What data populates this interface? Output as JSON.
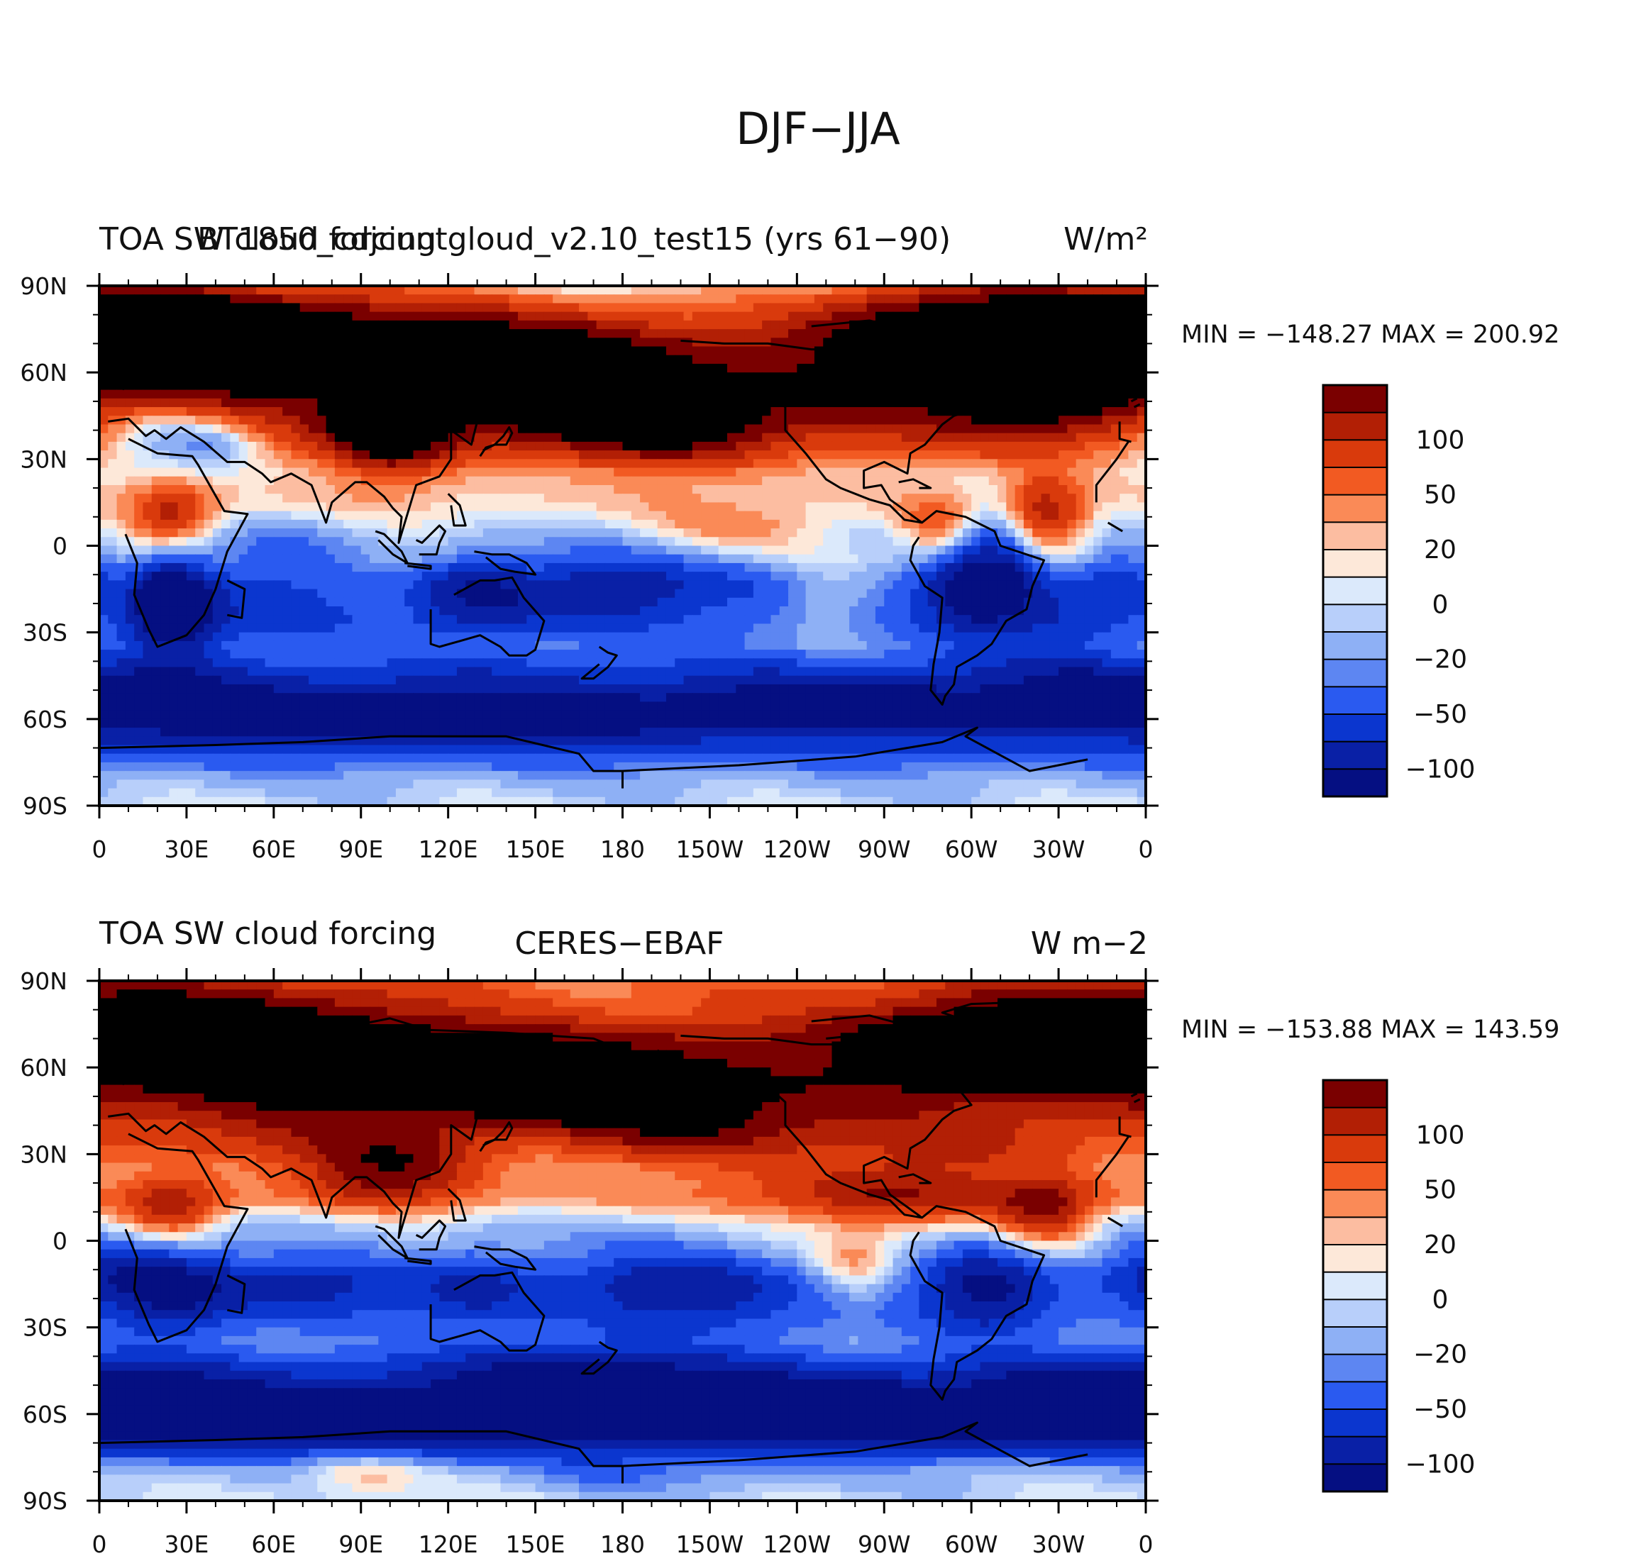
{
  "figure": {
    "title": "DJF−JJA"
  },
  "tick_labels": {
    "lat": [
      "90N",
      "60N",
      "30N",
      "0",
      "30S",
      "60S",
      "90S"
    ],
    "lon": [
      "0",
      "30E",
      "60E",
      "90E",
      "120E",
      "150E",
      "180",
      "150W",
      "120W",
      "90W",
      "60W",
      "30W",
      "0"
    ]
  },
  "colorbar": {
    "labels": [
      "100",
      "50",
      "20",
      "0",
      "−20",
      "−50",
      "−100"
    ],
    "colors": [
      "#7a0000",
      "#b21f05",
      "#d93a0c",
      "#f25a22",
      "#fa8a57",
      "#fcbda1",
      "#fde8d9",
      "#dbe9fb",
      "#b8cffa",
      "#8eb0f5",
      "#5d86f2",
      "#2a5af0",
      "#0b36cf",
      "#0920a6",
      "#050f82"
    ]
  },
  "panels": [
    {
      "left_label": "TOA SW cloud forcing",
      "center_label": "BT1850_cdjcuntgloud_v2.10_test15 (yrs 61−90)",
      "right_label": "W/m²",
      "stats": "MIN = −148.27  MAX = 200.92",
      "min": -148.27,
      "max": 200.92
    },
    {
      "left_label": "TOA SW cloud forcing",
      "center_label": "CERES−EBAF",
      "right_label": "W m−2",
      "stats": "MIN = −153.88  MAX = 143.59",
      "min": -153.88,
      "max": 143.59
    }
  ],
  "chart_data": [
    {
      "type": "heatmap",
      "title": "TOA SW cloud forcing",
      "subtitle": "BT1850_cdjcuntgloud_v2.10_test15 (yrs 61−90)",
      "units": "W/m²",
      "x_range": [
        0,
        360
      ],
      "y_range": [
        -90,
        90
      ],
      "contour_levels": [
        -130,
        -100,
        -75,
        -50,
        -35,
        -20,
        -10,
        0,
        10,
        20,
        35,
        50,
        75,
        100,
        130
      ],
      "min": -148.27,
      "max": 200.92
    },
    {
      "type": "heatmap",
      "title": "TOA SW cloud forcing",
      "subtitle": "CERES−EBAF",
      "units": "W m−2",
      "x_range": [
        0,
        360
      ],
      "y_range": [
        -90,
        90
      ],
      "contour_levels": [
        -130,
        -100,
        -75,
        -50,
        -35,
        -20,
        -10,
        0,
        10,
        20,
        35,
        50,
        75,
        100,
        130
      ],
      "min": -153.88,
      "max": 143.59
    }
  ]
}
